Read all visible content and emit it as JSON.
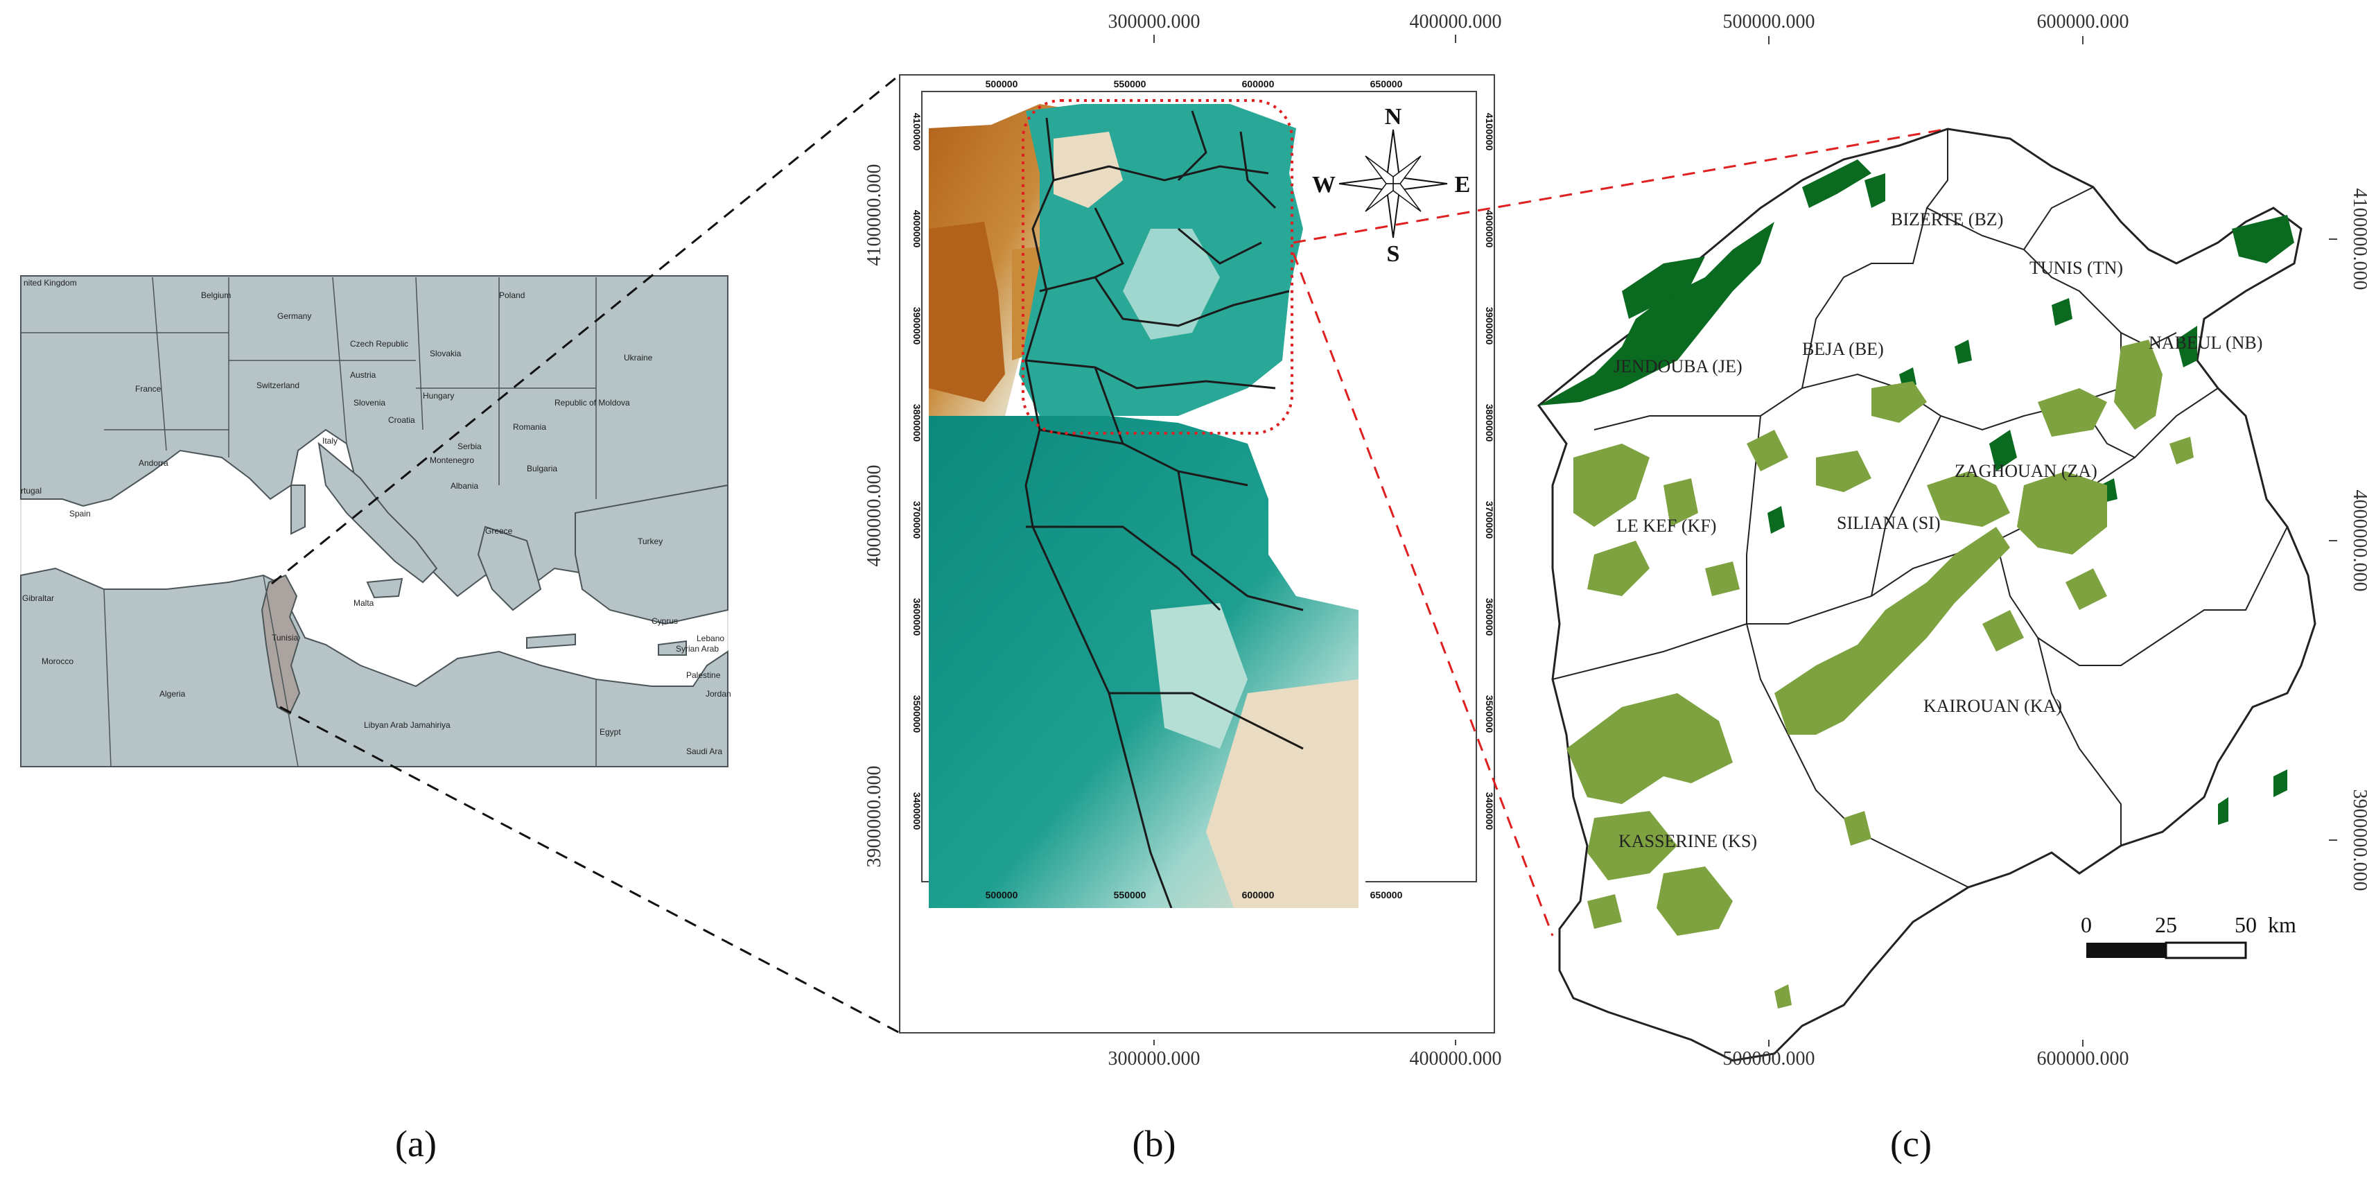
{
  "panels": {
    "a": "(a)",
    "b": "(b)",
    "c": "(c)"
  },
  "panel_a": {
    "countries": [
      "nited Kingdom",
      "Belgium",
      "Germany",
      "Poland",
      "Czech Republic",
      "Slovakia",
      "Ukraine",
      "France",
      "Switzerland",
      "Austria",
      "Hungary",
      "Republic of Moldova",
      "Slovenia",
      "Croatia",
      "Romania",
      "Serbia",
      "Italy",
      "Bulgaria",
      "Andorra",
      "Montenegro",
      "Albania",
      "Spain",
      "Turkey",
      "rtugal",
      "Greece",
      "Gibraltar",
      "Malta",
      "Cyprus",
      "Lebano",
      "Syrian Arab",
      "Palestine",
      "Jordan",
      "Morocco",
      "Tunisia",
      "Algeria",
      "Libyan Arab Jamahiriya",
      "Egypt",
      "Saudi Ara"
    ],
    "highlight_color": "#aaa39f",
    "land_color": "#b6c3c7"
  },
  "panel_b": {
    "compass": {
      "n": "N",
      "s": "S",
      "e": "E",
      "w": "W"
    },
    "top_axis": [
      "300000.000",
      "400000.000"
    ],
    "bottom_axis": [
      "300000.000",
      "400000.000"
    ],
    "left_axis": [
      "4100000.000",
      "4000000.000",
      "3900000.000"
    ],
    "inner_top": [
      "500000",
      "550000",
      "600000",
      "650000"
    ],
    "inner_bottom": [
      "500000",
      "550000",
      "600000",
      "650000"
    ],
    "inner_right": [
      "4100000",
      "4000000",
      "3900000",
      "3800000",
      "3700000",
      "3600000",
      "3500000",
      "3400000"
    ],
    "inner_left": [
      "4100000",
      "4000000",
      "3900000",
      "3800000",
      "3700000",
      "3600000",
      "3500000",
      "3400000"
    ],
    "elevation_colors": [
      "#0e9284",
      "#22a89a",
      "#e9ddc8",
      "#c98a3a",
      "#b2621a"
    ]
  },
  "panel_c": {
    "top_axis": [
      "500000.000",
      "600000.000"
    ],
    "bottom_axis": [
      "500000.000",
      "600000.000"
    ],
    "right_axis": [
      "4100000.000",
      "4000000.000",
      "3900000.000"
    ],
    "governorates": [
      "BIZERTE (BZ)",
      "TUNIS (TN)",
      "JENDOUBA (JE)",
      "BEJA (BE)",
      "NABEUL (NB)",
      "ZAGHOUAN (ZA)",
      "LE KEF (KF)",
      "SILIANA (SI)",
      "KAIROUAN (KA)",
      "KASSERINE (KS)"
    ],
    "scale_labels": [
      "0",
      "25",
      "50",
      "km"
    ],
    "dense_forest_color": "#0a6a20",
    "sparse_forest_color": "#7ea23f"
  }
}
